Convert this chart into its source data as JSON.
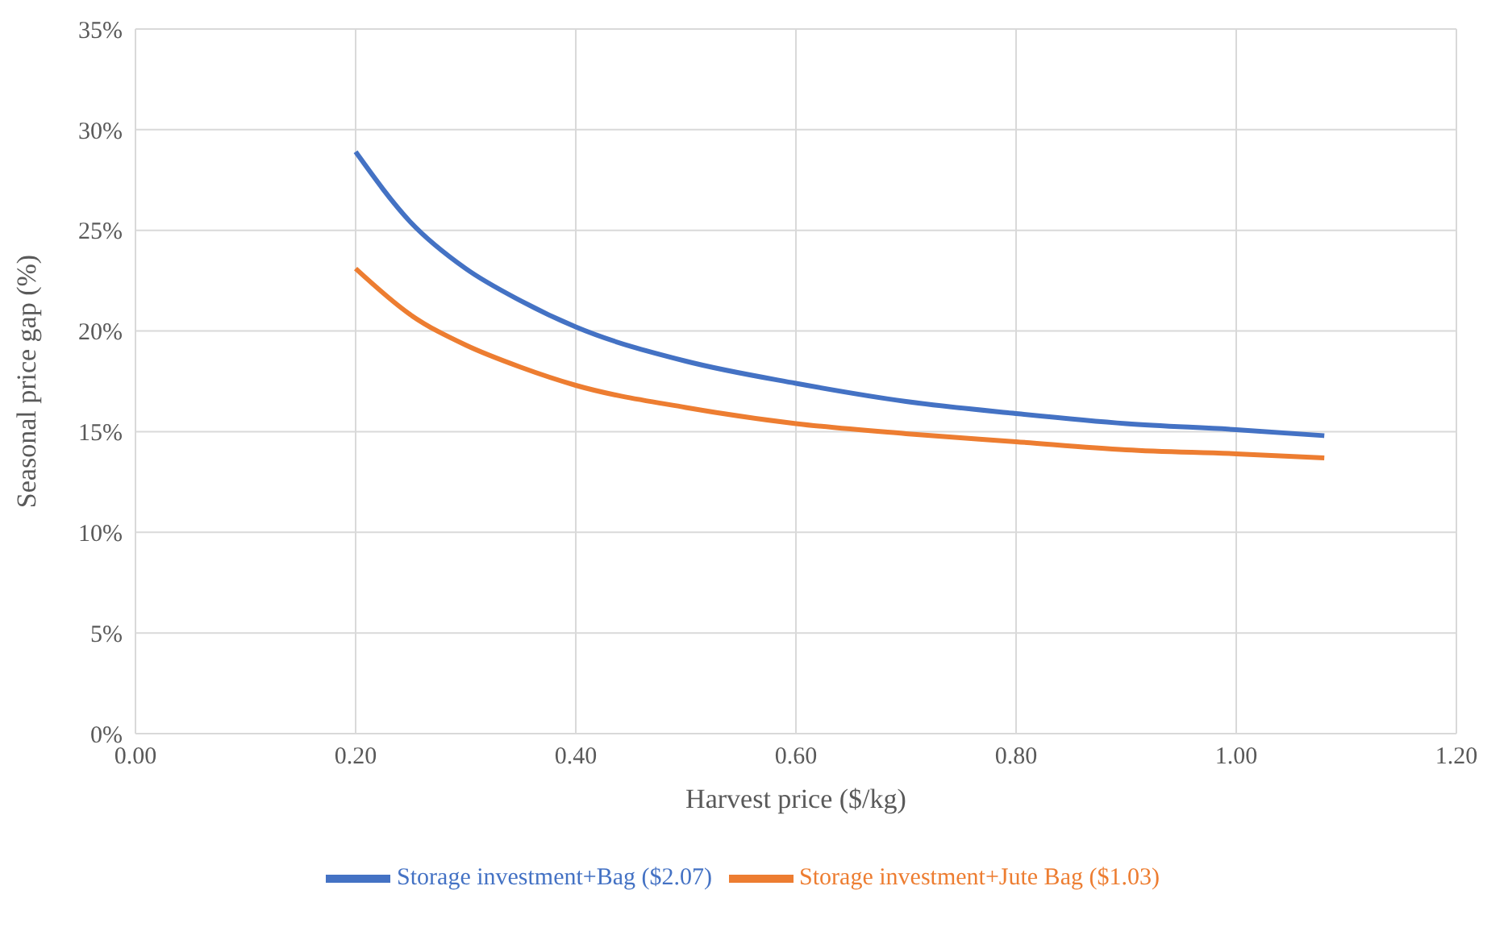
{
  "chart_data": {
    "type": "line",
    "xlabel": "Harvest price ($/kg)",
    "ylabel": "Seasonal price gap (%)",
    "xlim": [
      0,
      1.2
    ],
    "xticks": [
      {
        "value": 0,
        "label": "0.00"
      },
      {
        "value": 0.2,
        "label": "0.20"
      },
      {
        "value": 0.4,
        "label": "0.40"
      },
      {
        "value": 0.6,
        "label": "0.60"
      },
      {
        "value": 0.8,
        "label": "0.80"
      },
      {
        "value": 1,
        "label": "1.00"
      },
      {
        "value": 1.2,
        "label": "1.20"
      }
    ],
    "ylim": [
      0,
      35
    ],
    "yticks": [
      {
        "value": 0,
        "label": "0%"
      },
      {
        "value": 5,
        "label": "5%"
      },
      {
        "value": 10,
        "label": "10%"
      },
      {
        "value": 15,
        "label": "15%"
      },
      {
        "value": 20,
        "label": "20%"
      },
      {
        "value": 25,
        "label": "25%"
      },
      {
        "value": 30,
        "label": "30%"
      },
      {
        "value": 35,
        "label": "35%"
      }
    ],
    "x": [
      0.2,
      0.25,
      0.3,
      0.35,
      0.4,
      0.5,
      0.6,
      0.7,
      0.8,
      0.9,
      1.0,
      1.08
    ],
    "series": [
      {
        "name": "Storage investment+Bag ($2.07)",
        "color": "#4472c4",
        "values": [
          28.9,
          25.4,
          23.1,
          21.5,
          20.2,
          18.5,
          17.4,
          16.5,
          15.9,
          15.4,
          15.1,
          14.8
        ]
      },
      {
        "name": "Storage investment+Jute Bag ($1.03)",
        "color": "#ed7d31",
        "values": [
          23.1,
          20.8,
          19.3,
          18.2,
          17.3,
          16.2,
          15.4,
          14.9,
          14.5,
          14.1,
          13.9,
          13.7
        ]
      }
    ],
    "grid": true,
    "legend": "bottom",
    "marker": "none",
    "line_style": "solid"
  }
}
